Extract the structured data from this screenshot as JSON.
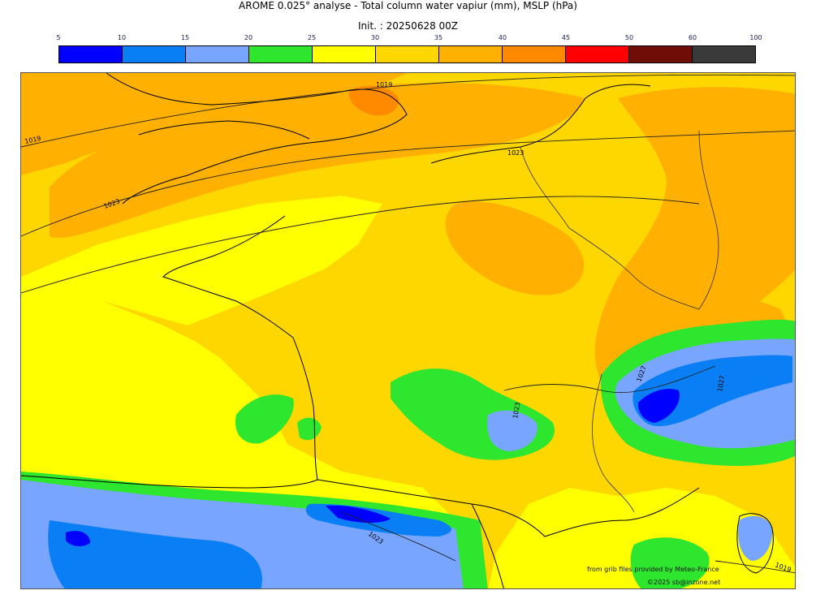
{
  "header": {
    "title": "AROME 0.025° analyse - Total column water vapiur (mm), MSLP (hPa)",
    "init": "Init. : 20250628 00Z"
  },
  "colorbar": {
    "ticks": [
      "5",
      "10",
      "15",
      "20",
      "25",
      "30",
      "35",
      "40",
      "45",
      "50",
      "60",
      "100"
    ],
    "colors": [
      "#0000ff",
      "#0a7ff5",
      "#78a5ff",
      "#2ee62e",
      "#ffff00",
      "#ffd700",
      "#ffb000",
      "#ff8a00",
      "#ff0000",
      "#6e0e06",
      "#3a3a3a"
    ]
  },
  "map": {
    "isobar_labels": [
      "1019",
      "1019",
      "1023",
      "1023",
      "1027",
      "1027",
      "1023",
      "1023",
      "1019"
    ]
  },
  "credits": {
    "source": "from grib files provided by Meteo-France",
    "copyright": "©2025 sb@inzone.net"
  }
}
